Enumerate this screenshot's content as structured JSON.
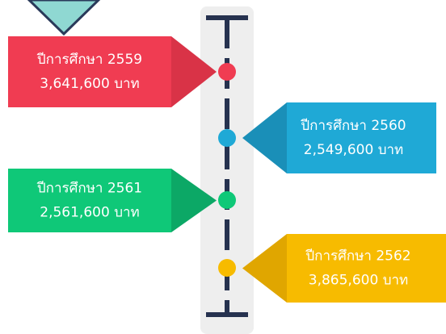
{
  "items": [
    {
      "title": "ปีการศึกษา 2559",
      "amount": "3,641,600 บาท",
      "color": "#f03c52",
      "dark": "#d93347",
      "dot": "#f03c52"
    },
    {
      "title": "ปีการศึกษา 2560",
      "amount": "2,549,600 บาท",
      "color": "#1fa9d6",
      "dark": "#1a8fb8",
      "dot": "#1fa9d6"
    },
    {
      "title": "ปีการศึกษา 2561",
      "amount": "2,561,600 บาท",
      "color": "#0fc878",
      "dark": "#0ca866",
      "dot": "#0fc878"
    },
    {
      "title": "ปีการศึกษา 2562",
      "amount": "3,865,600 บาท",
      "color": "#f7bb00",
      "dark": "#e0a600",
      "dot": "#f7bb00"
    }
  ]
}
